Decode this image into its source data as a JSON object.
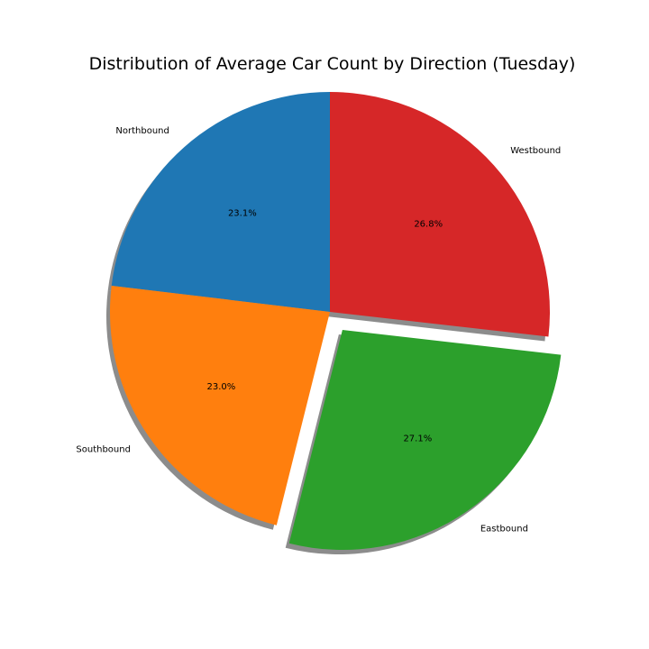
{
  "chart_data": {
    "type": "pie",
    "title": "Distribution of Average Car Count by Direction (Tuesday)",
    "start_angle_deg": 90,
    "direction": "counterclockwise",
    "shadow": true,
    "slices": [
      {
        "label": "Northbound",
        "value": 23.1,
        "pct_label": "23.1%",
        "color": "#1f77b4",
        "explode": 0
      },
      {
        "label": "Southbound",
        "value": 23.0,
        "pct_label": "23.0%",
        "color": "#ff7f0e",
        "explode": 0
      },
      {
        "label": "Eastbound",
        "value": 27.1,
        "pct_label": "27.1%",
        "color": "#2ca02c",
        "explode": 0.1
      },
      {
        "label": "Westbound",
        "value": 26.8,
        "pct_label": "26.8%",
        "color": "#d62728",
        "explode": 0
      }
    ]
  }
}
